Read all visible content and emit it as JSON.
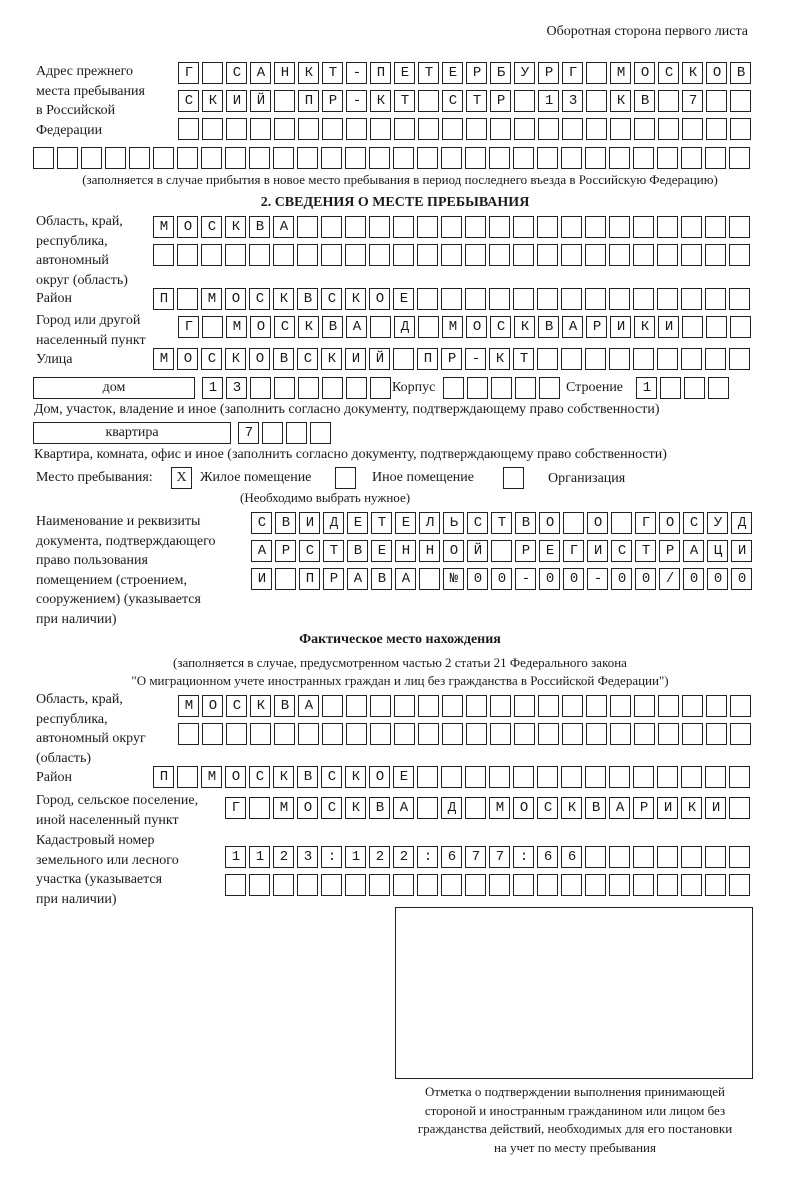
{
  "header": {
    "title": "Оборотная сторона первого листа"
  },
  "prev_address": {
    "label": "Адрес прежнего\nместа пребывания\nв Российской\nФедерации",
    "rows": [
      "Г САНКТ-ПЕТЕРБУРГ МОСКОВ",
      "СКИЙ ПР-КТ СТР 13 КВ 7",
      "",
      ""
    ],
    "note": "(заполняется в случае прибытия в новое место пребывания в период последнего въезда в Российскую Федерацию)"
  },
  "section2": {
    "title": "2. СВЕДЕНИЯ О МЕСТЕ ПРЕБЫВАНИЯ",
    "region_label": "Область, край,\nреспублика,\nавтономный\nокруг (область)",
    "region_rows": [
      "МОСКВА",
      ""
    ],
    "district_label": "Район",
    "district": "П МОСКВСКОЕ",
    "city_label": "Город или другой\nнаселенный пункт",
    "city": "Г МОСКВА Д МОСКВАРИКИ",
    "street_label": "Улица",
    "street": "МОСКОВСКИЙ ПР-КТ",
    "house_type": "дом",
    "house_number": "13",
    "building_label": "Корпус",
    "building": "",
    "structure_label": "Строение",
    "structure": "1",
    "house_note": "Дом, участок, владение и иное (заполнить согласно документу, подтверждающему право собственности)",
    "apartment_type": "квартира",
    "apartment_number": "7",
    "apartment_note": "Квартира, комната, офис и иное (заполнить согласно документу, подтверждающему право собственности)",
    "stay_place_label": "Место пребывания:",
    "stay_options": [
      {
        "label": "Жилое помещение",
        "mark": "X"
      },
      {
        "label": "Иное помещение",
        "mark": ""
      },
      {
        "label": "Организация",
        "mark": ""
      }
    ],
    "stay_note": "(Необходимо выбрать нужное)",
    "document_label": "Наименование и реквизиты\nдокумента, подтверждающего\nправо пользования\nпомещением (строением,\nсооружением) (указывается\nпри наличии)",
    "document_rows": [
      "СВИДЕТЕЛЬСТВО О ГОСУД",
      "АРСТВЕННОЙ РЕГИСТРАЦИ",
      "И ПРАВА №00-00-00/000"
    ]
  },
  "actual": {
    "title": "Фактическое место нахождения",
    "subtitle": "(заполняется в случае, предусмотренном частью 2 статьи 21 Федерального закона\n\"О миграционном учете иностранных граждан и лиц без гражданства в Российской Федерации\")",
    "region_label": "Область, край,\nреспублика,\nавтономный округ\n(область)",
    "region_rows": [
      "МОСКВА",
      ""
    ],
    "district_label": "Район",
    "district": "П МОСКВСКОЕ",
    "city_label": "Город, сельское поселение,\nиной населенный пункт",
    "city": "Г МОСКВА Д МОСКВАРИКИ",
    "cadastral_label": "Кадастровый номер\nземельного или лесного\nучастка (указывается\nпри наличии)",
    "cadastral_rows": [
      "1123:122:677:66",
      ""
    ]
  },
  "confirmation": {
    "caption": "Отметка о подтверждении выполнения принимающей\nстороной и иностранным гражданином или лицом без\nгражданства действий, необходимых для его постановки\nна учет по месту пребывания"
  }
}
